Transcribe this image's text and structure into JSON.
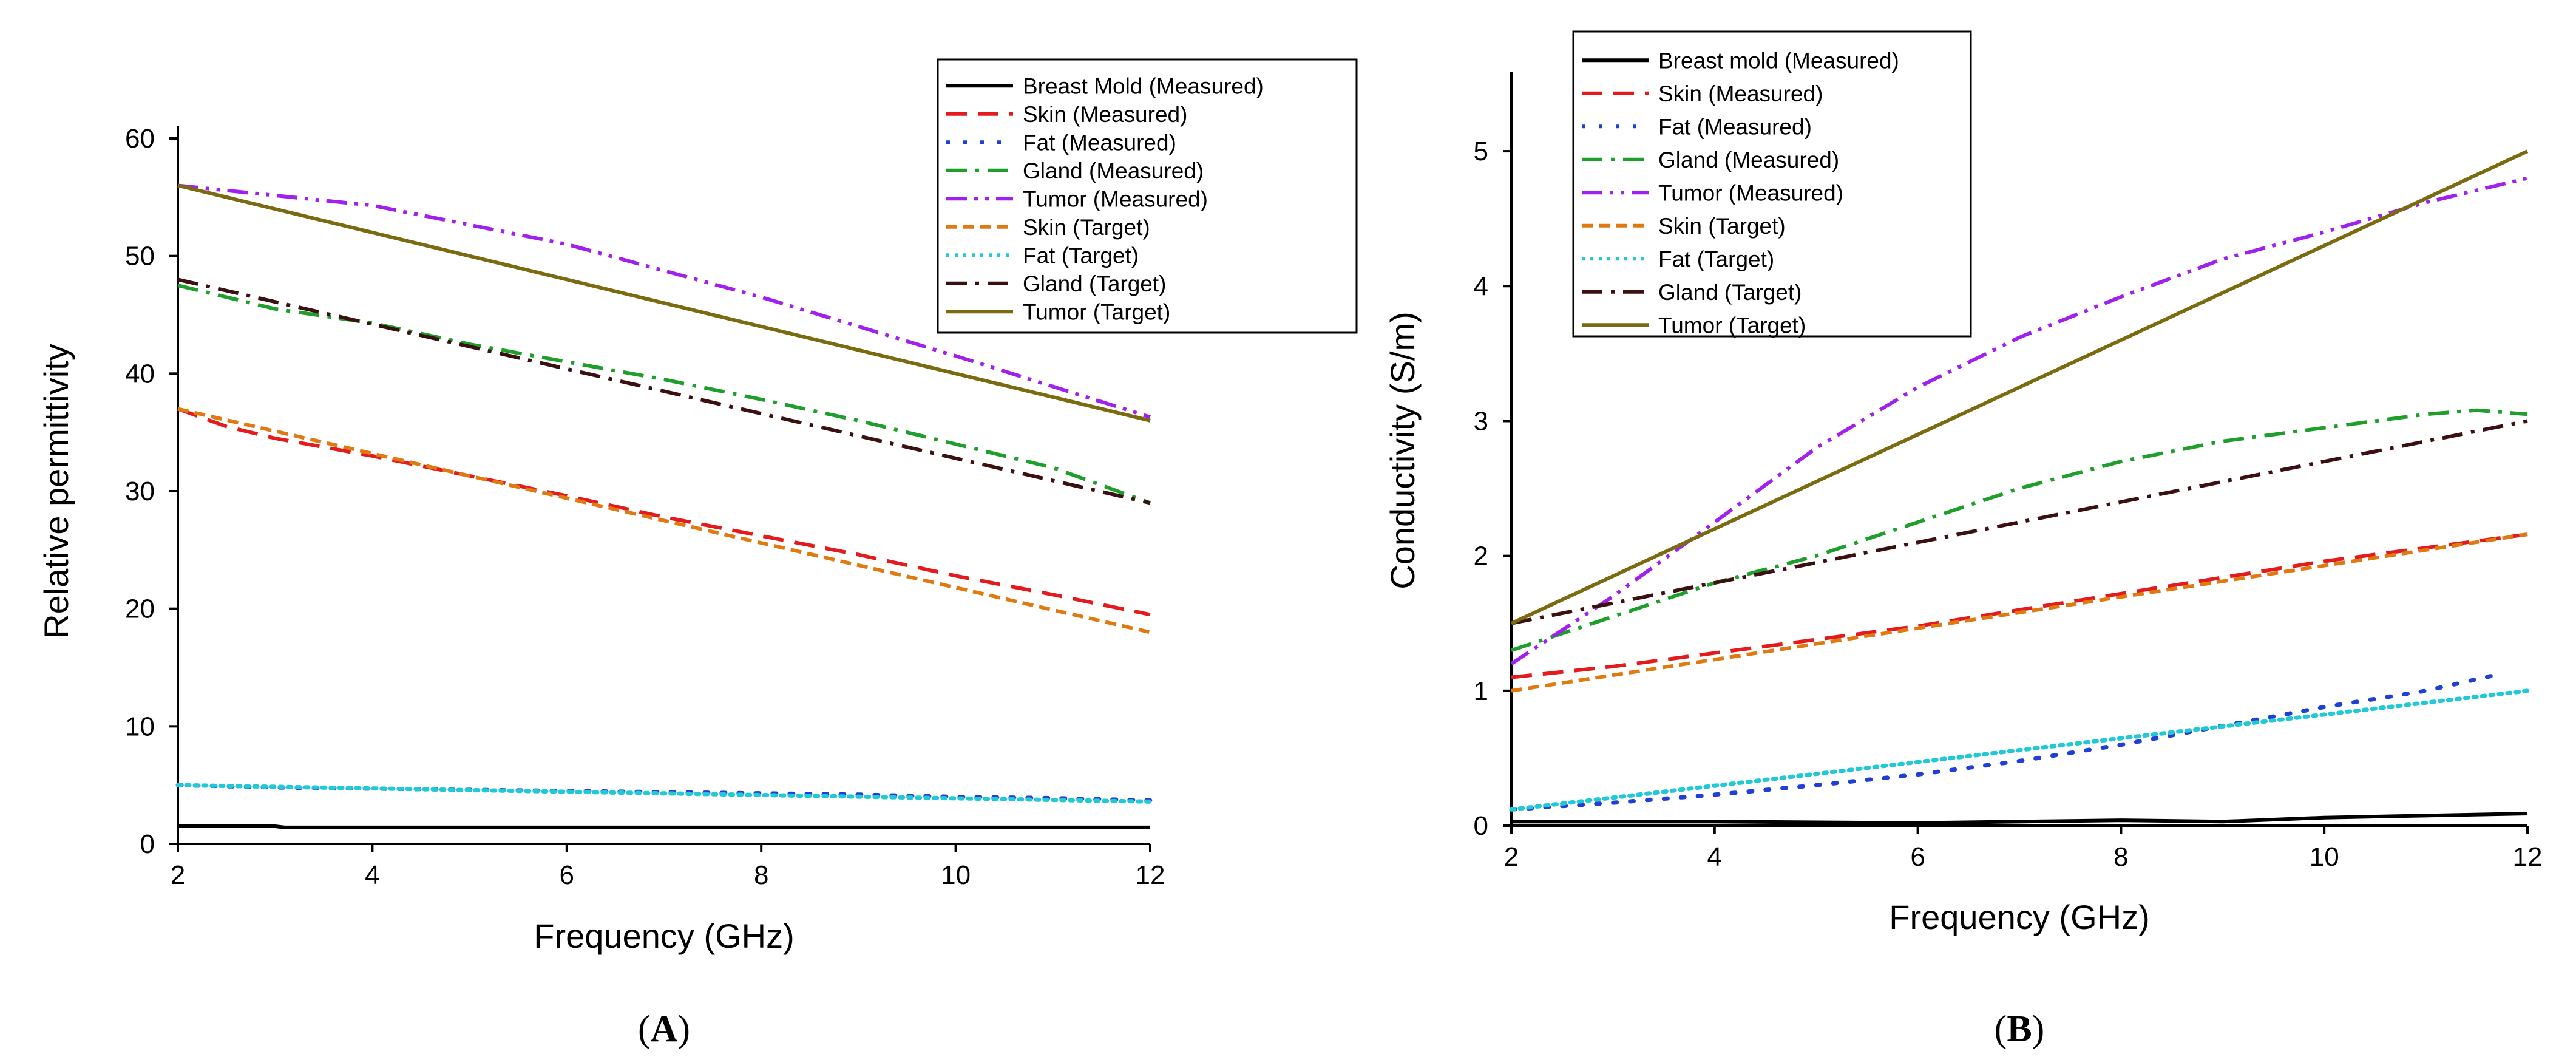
{
  "chart_data": [
    {
      "panel": "(A)",
      "panel_letter": "A",
      "type": "line",
      "xlabel": "Frequency (GHz)",
      "ylabel": "Relative permittivity",
      "xlim": [
        2,
        12
      ],
      "ylim": [
        0,
        60
      ],
      "xticks": [
        2,
        4,
        6,
        8,
        10,
        12
      ],
      "yticks": [
        0,
        10,
        20,
        30,
        40,
        50,
        60
      ],
      "grid": false,
      "legend_position": "top-right",
      "series": [
        {
          "name": "Breast Mold (Measured)",
          "color": "#000000",
          "style": "solid",
          "points": [
            [
              2,
              1.5
            ],
            [
              3,
              1.5
            ],
            [
              3.1,
              1.4
            ],
            [
              12,
              1.4
            ]
          ]
        },
        {
          "name": "Skin (Measured)",
          "color": "#e41a1c",
          "style": "dash",
          "points": [
            [
              2,
              37
            ],
            [
              2.5,
              35.5
            ],
            [
              3,
              34.5
            ],
            [
              4,
              33
            ],
            [
              5,
              31.3
            ],
            [
              6,
              29.6
            ],
            [
              7,
              27.8
            ],
            [
              8,
              26.2
            ],
            [
              9,
              24.6
            ],
            [
              10,
              22.8
            ],
            [
              11,
              21.2
            ],
            [
              12,
              19.5
            ]
          ]
        },
        {
          "name": "Fat (Measured)",
          "color": "#1f3fd6",
          "style": "dot",
          "points": [
            [
              2,
              5
            ],
            [
              3,
              4.8
            ],
            [
              4,
              4.7
            ],
            [
              5,
              4.6
            ],
            [
              6,
              4.5
            ],
            [
              7,
              4.4
            ],
            [
              8,
              4.3
            ],
            [
              9,
              4.2
            ],
            [
              10,
              4
            ],
            [
              11,
              3.9
            ],
            [
              12,
              3.7
            ]
          ]
        },
        {
          "name": "Gland (Measured)",
          "color": "#1e9e2a",
          "style": "dashdot",
          "points": [
            [
              2,
              47.5
            ],
            [
              3,
              45.5
            ],
            [
              4,
              44.3
            ],
            [
              5,
              42.5
            ],
            [
              6,
              41
            ],
            [
              7,
              39.5
            ],
            [
              8,
              37.8
            ],
            [
              9,
              36
            ],
            [
              10,
              34
            ],
            [
              11,
              32
            ],
            [
              12,
              29
            ]
          ]
        },
        {
          "name": "Tumor (Measured)",
          "color": "#a020f0",
          "style": "dashdotdot",
          "points": [
            [
              2,
              56
            ],
            [
              4,
              54.3
            ],
            [
              6,
              51
            ],
            [
              8,
              46.5
            ],
            [
              10,
              41.5
            ],
            [
              12,
              36.3
            ]
          ]
        },
        {
          "name": "Skin (Target)",
          "color": "#e07a10",
          "style": "shortdash",
          "points": [
            [
              2,
              37
            ],
            [
              12,
              18
            ]
          ]
        },
        {
          "name": "Fat (Target)",
          "color": "#20c8d8",
          "style": "shortdot",
          "points": [
            [
              2,
              5
            ],
            [
              12,
              3.6
            ]
          ]
        },
        {
          "name": "Gland (Target)",
          "color": "#3a1010",
          "style": "dashdot",
          "points": [
            [
              2,
              48
            ],
            [
              12,
              29
            ]
          ]
        },
        {
          "name": "Tumor (Target)",
          "color": "#7a6a10",
          "style": "solid",
          "points": [
            [
              2,
              56
            ],
            [
              12,
              36
            ]
          ]
        }
      ]
    },
    {
      "panel": "(B)",
      "panel_letter": "B",
      "type": "line",
      "xlabel": "Frequency (GHz)",
      "ylabel": "Conductivity (S/m)",
      "xlim": [
        2,
        12
      ],
      "ylim": [
        0,
        5.5
      ],
      "xticks": [
        2,
        4,
        6,
        8,
        10,
        12
      ],
      "yticks": [
        0,
        1,
        2,
        3,
        4,
        5
      ],
      "grid": false,
      "legend_position": "top-left",
      "series": [
        {
          "name": "Breast mold (Measured)",
          "color": "#000000",
          "style": "solid",
          "points": [
            [
              2,
              0.03
            ],
            [
              4,
              0.03
            ],
            [
              6,
              0.02
            ],
            [
              8,
              0.04
            ],
            [
              9,
              0.03
            ],
            [
              10,
              0.06
            ],
            [
              12,
              0.09
            ]
          ]
        },
        {
          "name": "Skin (Measured)",
          "color": "#e41a1c",
          "style": "dash",
          "points": [
            [
              2,
              1.1
            ],
            [
              3,
              1.18
            ],
            [
              4,
              1.28
            ],
            [
              5,
              1.38
            ],
            [
              6,
              1.48
            ],
            [
              7,
              1.6
            ],
            [
              8,
              1.72
            ],
            [
              9,
              1.84
            ],
            [
              10,
              1.96
            ],
            [
              11,
              2.06
            ],
            [
              12,
              2.16
            ]
          ]
        },
        {
          "name": "Fat (Measured)",
          "color": "#1f3fd6",
          "style": "dot",
          "points": [
            [
              2,
              0.12
            ],
            [
              3,
              0.17
            ],
            [
              4,
              0.23
            ],
            [
              5,
              0.3
            ],
            [
              6,
              0.38
            ],
            [
              7,
              0.48
            ],
            [
              8,
              0.6
            ],
            [
              9,
              0.74
            ],
            [
              10,
              0.88
            ],
            [
              11,
              1.0
            ],
            [
              11.7,
              1.12
            ]
          ]
        },
        {
          "name": "Gland (Measured)",
          "color": "#1e9e2a",
          "style": "dashdot",
          "points": [
            [
              2,
              1.3
            ],
            [
              3,
              1.55
            ],
            [
              4,
              1.8
            ],
            [
              5,
              2.0
            ],
            [
              6,
              2.25
            ],
            [
              7,
              2.5
            ],
            [
              8,
              2.7
            ],
            [
              9,
              2.85
            ],
            [
              10,
              2.95
            ],
            [
              11,
              3.05
            ],
            [
              11.5,
              3.08
            ],
            [
              12,
              3.05
            ]
          ]
        },
        {
          "name": "Tumor (Measured)",
          "color": "#a020f0",
          "style": "dashdotdot",
          "points": [
            [
              2,
              1.2
            ],
            [
              3,
              1.7
            ],
            [
              4,
              2.25
            ],
            [
              5,
              2.8
            ],
            [
              6,
              3.25
            ],
            [
              7,
              3.62
            ],
            [
              8,
              3.92
            ],
            [
              9,
              4.2
            ],
            [
              10,
              4.4
            ],
            [
              11,
              4.62
            ],
            [
              12,
              4.8
            ]
          ]
        },
        {
          "name": "Skin (Target)",
          "color": "#e07a10",
          "style": "shortdash",
          "points": [
            [
              2,
              1.0
            ],
            [
              12,
              2.16
            ]
          ]
        },
        {
          "name": "Fat (Target)",
          "color": "#20c8d8",
          "style": "shortdot",
          "points": [
            [
              2,
              0.12
            ],
            [
              12,
              1.0
            ]
          ]
        },
        {
          "name": "Gland (Target)",
          "color": "#3a1010",
          "style": "dashdot",
          "points": [
            [
              2,
              1.5
            ],
            [
              12,
              3.0
            ]
          ]
        },
        {
          "name": "Tumor (Target)",
          "color": "#7a6a10",
          "style": "solid",
          "points": [
            [
              2,
              1.5
            ],
            [
              12,
              5.0
            ]
          ]
        }
      ]
    }
  ]
}
